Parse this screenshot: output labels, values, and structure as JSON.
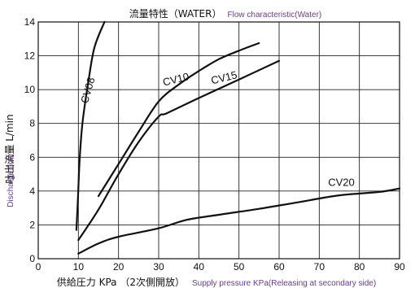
{
  "chart_data": {
    "type": "line",
    "title": {
      "jp": "流量特性（WATER）",
      "en": "Flow characteristic(Water)"
    },
    "xlabel": {
      "jp": "供給圧力 KPa （2次側開放）",
      "en": "Supply pressure KPa(Releasing at secondary side)"
    },
    "ylabel": {
      "jp": "吐出流量 L/min",
      "en": "Discharge flow"
    },
    "xlim": [
      0,
      90
    ],
    "ylim": [
      0,
      14
    ],
    "xticks": [
      "0",
      "10",
      "20",
      "30",
      "40",
      "50",
      "60",
      "70",
      "80",
      "90"
    ],
    "yticks": [
      "0",
      "2",
      "4",
      "6",
      "8",
      "10",
      "12",
      "14"
    ],
    "grid": true,
    "series": [
      {
        "name": "CV08",
        "points": [
          [
            9.5,
            1.7
          ],
          [
            9.9,
            3.6
          ],
          [
            10.3,
            5.8
          ],
          [
            11.0,
            8.0
          ],
          [
            12.5,
            10.5
          ],
          [
            14.0,
            12.5
          ],
          [
            16.5,
            14.0
          ]
        ]
      },
      {
        "name": "CV10",
        "points": [
          [
            15.0,
            3.7
          ],
          [
            20.0,
            5.6
          ],
          [
            25.0,
            7.5
          ],
          [
            30.0,
            9.3
          ],
          [
            35.0,
            10.3
          ],
          [
            40.0,
            11.1
          ],
          [
            45.0,
            11.8
          ],
          [
            50.0,
            12.3
          ],
          [
            55.0,
            12.75
          ]
        ]
      },
      {
        "name": "CV15",
        "points": [
          [
            10.0,
            1.1
          ],
          [
            15.0,
            2.9
          ],
          [
            20.0,
            5.0
          ],
          [
            25.0,
            6.9
          ],
          [
            30.0,
            8.4
          ],
          [
            32.0,
            8.6
          ],
          [
            40.0,
            9.5
          ],
          [
            50.0,
            10.6
          ],
          [
            60.0,
            11.7
          ]
        ]
      },
      {
        "name": "CV20",
        "points": [
          [
            10.0,
            0.3
          ],
          [
            15.0,
            0.9
          ],
          [
            20.0,
            1.3
          ],
          [
            30.0,
            1.8
          ],
          [
            37.0,
            2.3
          ],
          [
            45.0,
            2.6
          ],
          [
            55.0,
            2.95
          ],
          [
            65.0,
            3.35
          ],
          [
            75.0,
            3.75
          ],
          [
            85.0,
            3.95
          ],
          [
            90.0,
            4.15
          ]
        ]
      }
    ]
  }
}
